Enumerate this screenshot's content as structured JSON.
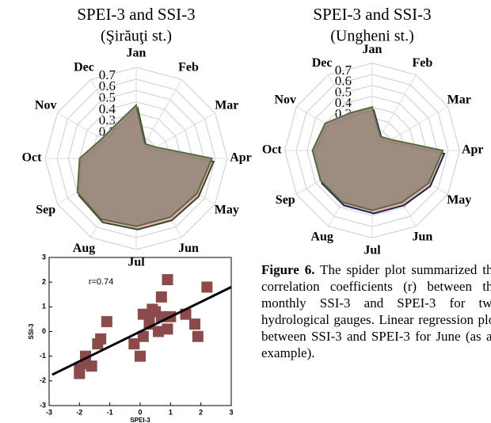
{
  "chart_data": [
    {
      "type": "radar",
      "title": "SPEI-3 and SSI-3",
      "subtitle": "(Şirăuţi st.)",
      "categories": [
        "Jan",
        "Feb",
        "Mar",
        "Apr",
        "May",
        "Jun",
        "Jul",
        "Aug",
        "Sep",
        "Oct",
        "Nov",
        "Dec"
      ],
      "values": [
        0.47,
        0.15,
        0.2,
        0.67,
        0.62,
        0.6,
        0.6,
        0.62,
        0.6,
        0.5,
        0.35,
        0.35
      ],
      "color": "#9a8a7e",
      "rlim": [
        0,
        0.7
      ],
      "rticks": [
        0.1,
        0.2,
        0.3,
        0.4,
        0.5,
        0.6,
        0.7
      ]
    },
    {
      "type": "radar",
      "title": "SPEI-3 and SSI-3",
      "subtitle": "(Ungheni st.)",
      "categories": [
        "Jan",
        "Feb",
        "Mar",
        "Apr",
        "May",
        "Jun",
        "Jul",
        "Aug",
        "Sep",
        "Oct",
        "Nov",
        "Dec"
      ],
      "values": [
        0.4,
        0.15,
        0.2,
        0.65,
        0.6,
        0.55,
        0.55,
        0.55,
        0.55,
        0.55,
        0.5,
        0.4
      ],
      "color": "#9a8a7e",
      "rlim": [
        0,
        0.7
      ],
      "rticks": [
        0.1,
        0.2,
        0.3,
        0.4,
        0.5,
        0.6,
        0.7
      ]
    },
    {
      "type": "scatter",
      "x_label": "SPEI-3",
      "y_label": "SSI-3",
      "annotation": "r=0.74",
      "x": [
        -2,
        -2,
        -1.8,
        -1.8,
        -1.6,
        -1.4,
        -1.3,
        -1.1,
        -0.2,
        0,
        0.1,
        0.1,
        0.3,
        0.4,
        0.5,
        0.6,
        0.7,
        0.7,
        0.9,
        0.9,
        1,
        1.5,
        1.8,
        1.9,
        2.2,
        0.3
      ],
      "y": [
        -1.7,
        -1.5,
        -1,
        -1.3,
        -1.4,
        -0.5,
        -0.3,
        0.4,
        -0.5,
        -1,
        -0.2,
        0.7,
        0.3,
        0.9,
        0.8,
        0,
        0.6,
        1.4,
        2.1,
        0.1,
        0.6,
        0.7,
        0.3,
        -0.2,
        1.8,
        0.5
      ],
      "color": "#8b4b4b",
      "xlim": [
        -3,
        3
      ],
      "ylim": [
        -3,
        3
      ],
      "xticks": [
        -3,
        -2,
        -1,
        0,
        1,
        2,
        3
      ],
      "yticks": [
        -3,
        -2,
        -1,
        0,
        1,
        2,
        3
      ],
      "fit_line": {
        "x": [
          -2.9,
          3
        ],
        "y": [
          -1.75,
          1.8
        ],
        "color": "#000000"
      }
    }
  ],
  "caption": {
    "label": "Figure 6.",
    "text": "The spider plot summarized the correlation coefficients (r) between the monthly SSI-3 and SPEI-3 for two hydrological gauges. Linear regression plot between SSI-3 and SPEI-3 for June (as an example)."
  }
}
